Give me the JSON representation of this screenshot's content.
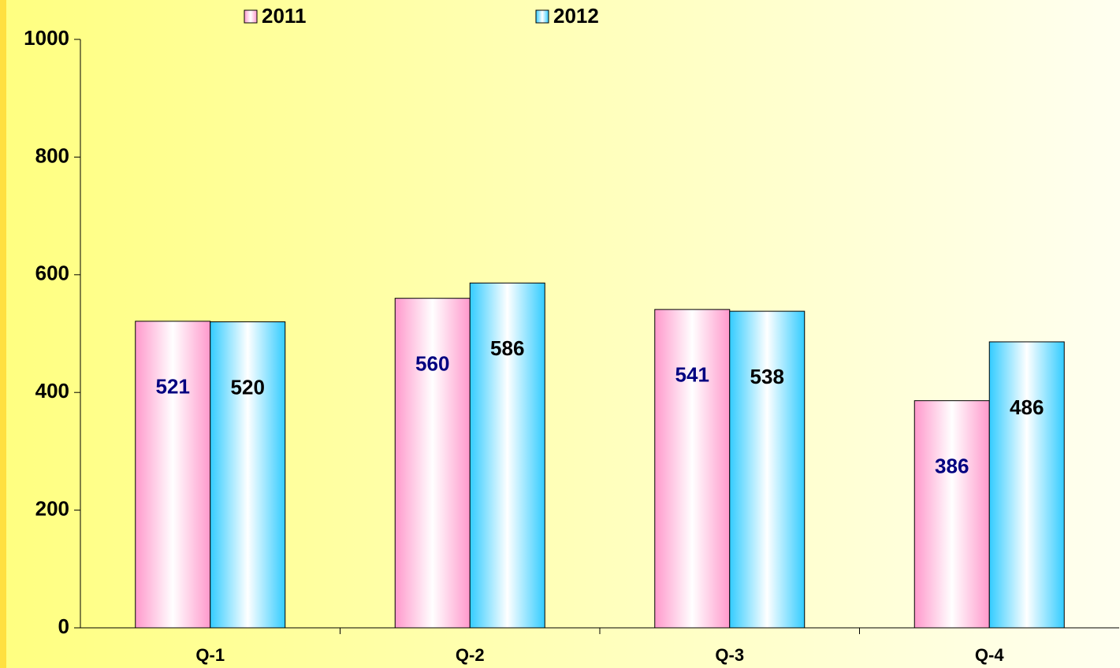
{
  "chart_data": {
    "type": "bar",
    "categories": [
      "Q-1",
      "Q-2",
      "Q-3",
      "Q-4"
    ],
    "series": [
      {
        "name": "2011",
        "color": "#ff99cc",
        "label_color": "#000080",
        "values": [
          521,
          560,
          541,
          386
        ]
      },
      {
        "name": "2012",
        "color": "#33ccff",
        "label_color": "#000000",
        "values": [
          520,
          586,
          538,
          486
        ]
      }
    ],
    "ylim": [
      0,
      1000
    ],
    "yticks": [
      0,
      200,
      400,
      600,
      800,
      1000
    ],
    "grid": false,
    "legend": "top"
  }
}
